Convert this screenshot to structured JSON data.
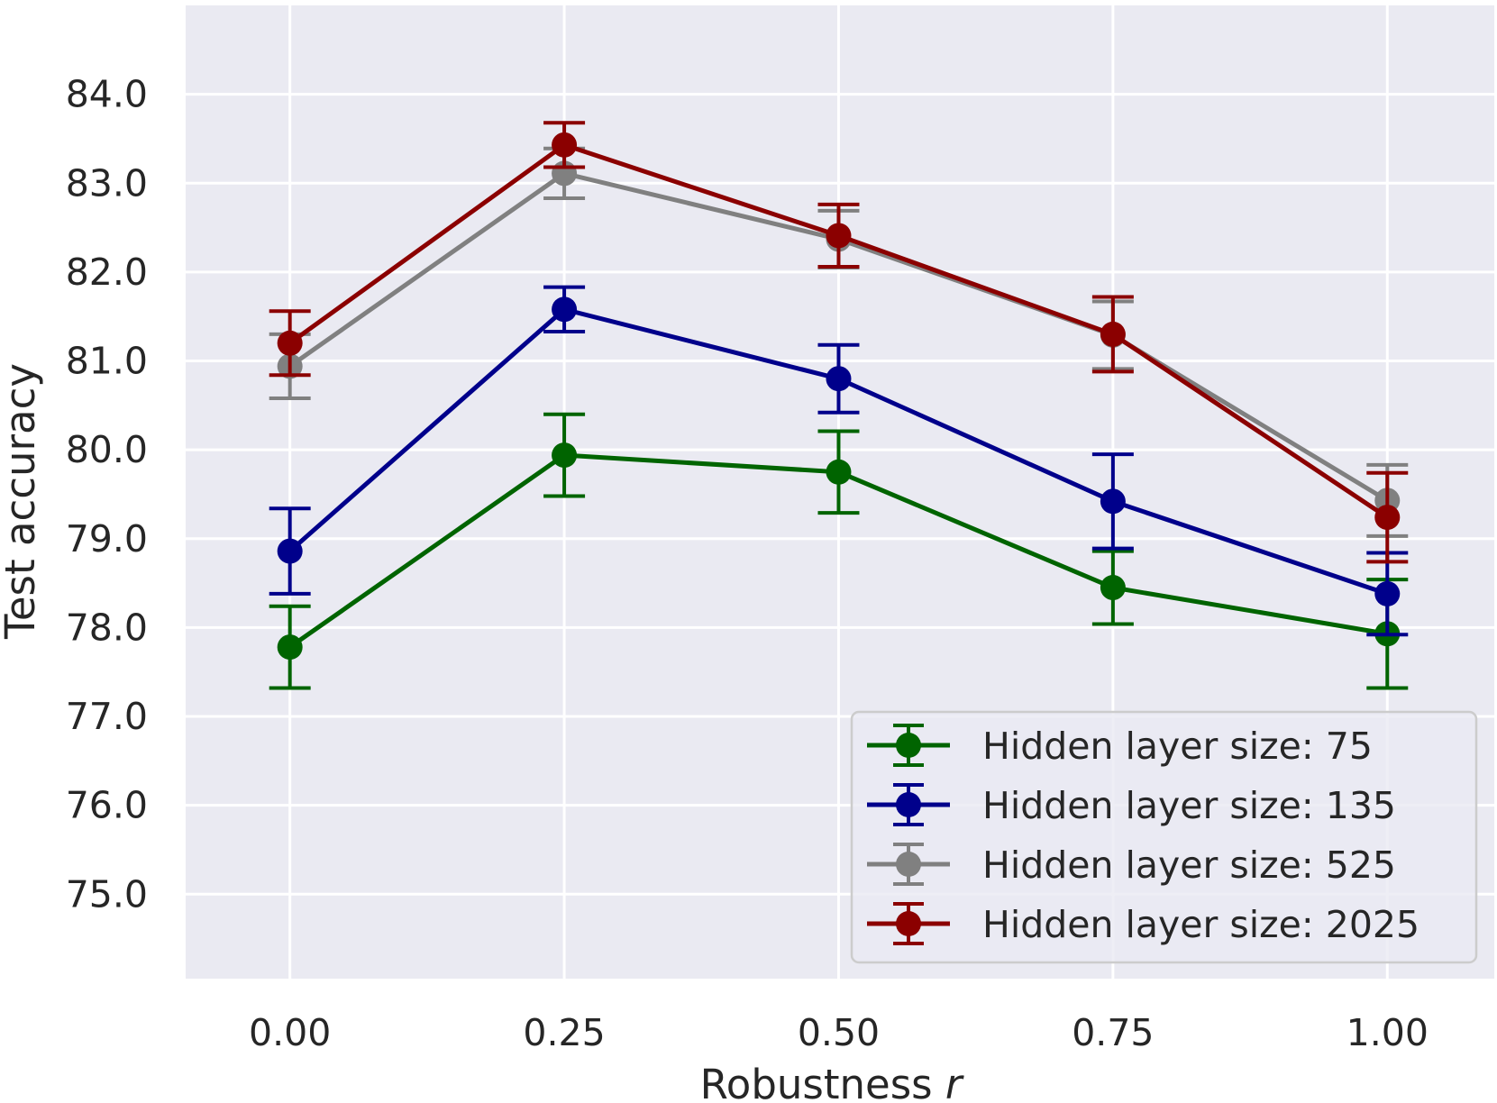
{
  "chart_data": {
    "type": "line",
    "title": "",
    "xlabel": "Robustness",
    "xlabel_var": "r",
    "ylabel": "Test accuracy",
    "x": [
      0.0,
      0.25,
      0.5,
      0.75,
      1.0
    ],
    "xtick_labels": [
      "0.00",
      "0.25",
      "0.50",
      "0.75",
      "1.00"
    ],
    "yticks": [
      75.0,
      76.0,
      77.0,
      78.0,
      79.0,
      80.0,
      81.0,
      82.0,
      83.0,
      84.0
    ],
    "ytick_labels": [
      "75.0",
      "76.0",
      "77.0",
      "78.0",
      "79.0",
      "80.0",
      "81.0",
      "82.0",
      "83.0",
      "84.0"
    ],
    "xlim": [
      -0.095,
      1.0975
    ],
    "ylim": [
      74.05,
      85.0
    ],
    "grid": true,
    "legend_position": "lower right",
    "series": [
      {
        "name": "Hidden layer size: 75",
        "color": "#006400",
        "values": [
          77.78,
          79.94,
          79.75,
          78.45,
          77.93
        ],
        "errors": [
          0.46,
          0.46,
          0.46,
          0.41,
          0.61
        ]
      },
      {
        "name": "Hidden layer size: 135",
        "color": "#00008b",
        "values": [
          78.86,
          81.58,
          80.8,
          79.42,
          78.38
        ],
        "errors": [
          0.48,
          0.25,
          0.38,
          0.53,
          0.46
        ]
      },
      {
        "name": "Hidden layer size: 525",
        "color": "#808080",
        "values": [
          80.94,
          83.11,
          82.37,
          81.29,
          79.43
        ],
        "errors": [
          0.36,
          0.28,
          0.32,
          0.38,
          0.4
        ]
      },
      {
        "name": "Hidden layer size: 2025",
        "color": "#8b0000",
        "values": [
          81.2,
          83.43,
          82.41,
          81.3,
          79.24
        ],
        "errors": [
          0.36,
          0.25,
          0.35,
          0.42,
          0.5
        ]
      }
    ]
  },
  "colors": {
    "plot_background": "#eaeaf2",
    "grid": "#ffffff",
    "legend_background": "#eaeaf2",
    "legend_border": "#cccccc",
    "text": "#262626"
  }
}
